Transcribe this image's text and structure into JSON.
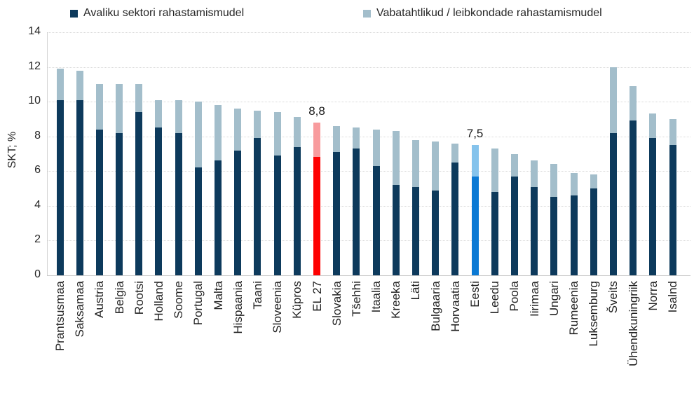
{
  "chart": {
    "y_axis_title": "SKT; %",
    "legend": [
      {
        "label": "Avaliku sektori rahastamismudel",
        "color": "#0d3a5c"
      },
      {
        "label": "Vabatahtlikud / leibkondade rahastamismudel",
        "color": "#a3becb"
      }
    ]
  },
  "chart_data": {
    "type": "bar",
    "stacked": true,
    "title": "",
    "xlabel": "",
    "ylabel": "SKT; %",
    "ylim": [
      0,
      14
    ],
    "yticks": [
      0,
      2,
      4,
      6,
      8,
      10,
      12,
      14
    ],
    "grid": "horizontal-dotted",
    "legend_position": "top",
    "categories": [
      "Prantsusmaa",
      "Saksamaa",
      "Austria",
      "Belgia",
      "Rootsi",
      "Holland",
      "Soome",
      "Portugal",
      "Malta",
      "Hispaania",
      "Taani",
      "Sloveenia",
      "Küpros",
      "EL 27",
      "Slovakia",
      "Tšehhi",
      "Itaalia",
      "Kreeka",
      "Läti",
      "Bulgaaria",
      "Horvaatia",
      "Eesti",
      "Leedu",
      "Poola",
      "Iirimaa",
      "Ungari",
      "Rumeenia",
      "Luksemburg",
      "Šveits",
      "Ühendkuningriik",
      "Norra",
      "Isalnd"
    ],
    "series": [
      {
        "name": "Avaliku sektori rahastamismudel",
        "values": [
          10.1,
          10.1,
          8.4,
          8.2,
          9.4,
          8.5,
          8.2,
          6.2,
          6.6,
          7.2,
          7.9,
          6.9,
          7.4,
          6.8,
          7.1,
          7.3,
          6.3,
          5.2,
          5.1,
          4.9,
          6.5,
          5.7,
          4.8,
          5.7,
          5.1,
          4.5,
          4.6,
          5.0,
          8.2,
          8.9,
          7.9,
          7.5
        ]
      },
      {
        "name": "Vabatahtlikud / leibkondade rahastamismudel",
        "values": [
          1.8,
          1.7,
          2.6,
          2.8,
          1.6,
          1.6,
          1.9,
          3.8,
          3.2,
          2.4,
          1.6,
          2.5,
          1.7,
          2.0,
          1.5,
          1.2,
          2.1,
          3.1,
          2.7,
          2.8,
          1.1,
          1.8,
          2.5,
          1.3,
          1.5,
          1.9,
          1.3,
          0.8,
          3.8,
          2.0,
          1.4,
          1.5
        ]
      }
    ],
    "totals": [
      11.9,
      11.8,
      11.0,
      11.0,
      11.0,
      10.1,
      10.1,
      10.0,
      9.8,
      9.6,
      9.5,
      9.4,
      9.1,
      8.8,
      8.6,
      8.5,
      8.4,
      8.3,
      7.8,
      7.7,
      7.6,
      7.5,
      7.3,
      7.0,
      6.6,
      6.4,
      5.9,
      5.8,
      12.0,
      10.9,
      9.3,
      9.0
    ],
    "annotations": [
      {
        "category": "EL 27",
        "text": "8,8"
      },
      {
        "category": "Eesti",
        "text": "7,5"
      }
    ],
    "colors": {
      "public": "#0d3a5c",
      "voluntary": "#a3becb"
    },
    "highlighted_bars": {
      "EL 27": {
        "public": "#fe0101",
        "voluntary": "#f89b9d"
      },
      "Eesti": {
        "public": "#0b79d4",
        "voluntary": "#85c3ec"
      }
    }
  }
}
